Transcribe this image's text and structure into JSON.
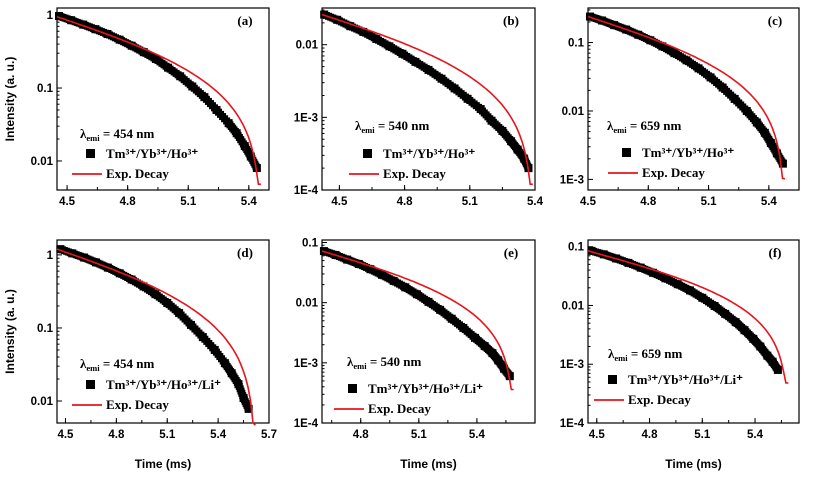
{
  "figure": {
    "y_axis_label": "Intensity (a. u.)",
    "x_axis_label": "Time (ms)",
    "colors": {
      "data": "#000000",
      "fit": "#e8141b"
    }
  },
  "chart_data": [
    {
      "type": "scatter",
      "id": "a",
      "letter": "(a)",
      "wavelength_label": "λ",
      "wavelength_sub": "emi",
      "wavelength_value": "= 454 nm",
      "xlim": [
        4.45,
        5.5
      ],
      "ylim": [
        0.004,
        1.25
      ],
      "xticks": [
        4.5,
        4.8,
        5.1,
        5.4
      ],
      "xtick_labels": [
        "4.5",
        "4.8",
        "5.1",
        "5.4"
      ],
      "yticks": [
        0.01,
        0.1,
        1
      ],
      "ytick_labels": [
        "0.01",
        "0.1",
        "1"
      ],
      "series": [
        {
          "name": "Tm³⁺/Yb³⁺/Ho³⁺",
          "kind": "data",
          "marker": "square",
          "x": [
            4.46,
            4.52,
            4.58,
            4.64,
            4.7,
            4.76,
            4.82,
            4.88,
            4.94,
            5.0,
            5.06,
            5.12,
            5.18,
            5.24,
            5.3,
            5.34,
            5.38,
            5.41,
            5.44
          ],
          "y": [
            0.97,
            0.85,
            0.74,
            0.64,
            0.55,
            0.46,
            0.38,
            0.31,
            0.25,
            0.19,
            0.145,
            0.105,
            0.075,
            0.05,
            0.033,
            0.024,
            0.016,
            0.0115,
            0.008
          ]
        },
        {
          "name": "Exp. Decay",
          "kind": "fit",
          "T": 5.46,
          "A": 0.95,
          "p": 1.4
        }
      ],
      "legend": {
        "data_label": "Tm³⁺/Yb³⁺/Ho³⁺",
        "fit_label": "Exp. Decay"
      },
      "ylabel": "Intensity (a. u.)",
      "xlabel": ""
    },
    {
      "type": "scatter",
      "id": "b",
      "letter": "(b)",
      "wavelength_label": "λ",
      "wavelength_sub": "emi",
      "wavelength_value": "= 540 nm",
      "xlim": [
        4.42,
        5.4
      ],
      "ylim": [
        0.0001,
        0.032
      ],
      "xticks": [
        4.5,
        4.8,
        5.1,
        5.4
      ],
      "xtick_labels": [
        "4.5",
        "4.8",
        "5.1",
        "5.4"
      ],
      "yticks": [
        0.0001,
        0.001,
        0.01
      ],
      "ytick_labels": [
        "1E-4",
        "1E-3",
        "0.01"
      ],
      "series": [
        {
          "name": "Tm³⁺/Yb³⁺/Ho³⁺",
          "kind": "data",
          "marker": "square",
          "x": [
            4.43,
            4.49,
            4.55,
            4.61,
            4.67,
            4.73,
            4.79,
            4.85,
            4.91,
            4.97,
            5.03,
            5.09,
            5.15,
            5.2,
            5.25,
            5.29,
            5.32,
            5.35,
            5.37
          ],
          "y": [
            0.026,
            0.022,
            0.018,
            0.015,
            0.012,
            0.0095,
            0.0075,
            0.0058,
            0.0045,
            0.0034,
            0.0025,
            0.0018,
            0.0013,
            0.0009,
            0.00065,
            0.00047,
            0.00036,
            0.00027,
            0.0002
          ]
        },
        {
          "name": "Exp. Decay",
          "kind": "fit",
          "T": 5.39,
          "A": 0.026,
          "p": 1.35
        }
      ],
      "legend": {
        "data_label": "Tm³⁺/Yb³⁺/Ho³⁺",
        "fit_label": "Exp. Decay"
      },
      "ylabel": "",
      "xlabel": ""
    },
    {
      "type": "scatter",
      "id": "c",
      "letter": "(c)",
      "wavelength_label": "λ",
      "wavelength_sub": "emi",
      "wavelength_value": "= 659 nm",
      "xlim": [
        4.5,
        5.55
      ],
      "ylim": [
        0.0007,
        0.32
      ],
      "xticks": [
        4.5,
        4.8,
        5.1,
        5.4
      ],
      "xtick_labels": [
        "4.5",
        "4.8",
        "5.1",
        "5.4"
      ],
      "yticks": [
        0.001,
        0.01,
        0.1
      ],
      "ytick_labels": [
        "1E-3",
        "0.01",
        "0.1"
      ],
      "series": [
        {
          "name": "Tm³⁺/Yb³⁺/Ho³⁺",
          "kind": "data",
          "marker": "square",
          "x": [
            4.51,
            4.57,
            4.63,
            4.69,
            4.75,
            4.81,
            4.87,
            4.93,
            4.99,
            5.05,
            5.11,
            5.17,
            5.23,
            5.29,
            5.34,
            5.38,
            5.41,
            5.44,
            5.47
          ],
          "y": [
            0.24,
            0.21,
            0.18,
            0.155,
            0.13,
            0.108,
            0.088,
            0.07,
            0.055,
            0.042,
            0.031,
            0.022,
            0.015,
            0.01,
            0.0068,
            0.0048,
            0.0034,
            0.0024,
            0.0017
          ]
        },
        {
          "name": "Exp. Decay",
          "kind": "fit",
          "T": 5.48,
          "A": 0.24,
          "p": 1.4
        }
      ],
      "legend": {
        "data_label": "Tm³⁺/Yb³⁺/Ho³⁺",
        "fit_label": "Exp. Decay"
      },
      "ylabel": "",
      "xlabel": ""
    },
    {
      "type": "scatter",
      "id": "d",
      "letter": "(d)",
      "wavelength_label": "λ",
      "wavelength_sub": "emi",
      "wavelength_value": "= 454 nm",
      "xlim": [
        4.45,
        5.7
      ],
      "ylim": [
        0.005,
        1.6
      ],
      "xticks": [
        4.5,
        4.8,
        5.1,
        5.4,
        5.7
      ],
      "xtick_labels": [
        "4.5",
        "4.8",
        "5.1",
        "5.4",
        "5.7"
      ],
      "yticks": [
        0.01,
        0.1,
        1
      ],
      "ytick_labels": [
        "0.01",
        "0.1",
        "1"
      ],
      "series": [
        {
          "name": "Tm³⁺/Yb³⁺/Ho³⁺/Li⁺",
          "kind": "data",
          "marker": "square",
          "x": [
            4.47,
            4.54,
            4.61,
            4.68,
            4.75,
            4.82,
            4.89,
            4.96,
            5.03,
            5.1,
            5.17,
            5.24,
            5.31,
            5.38,
            5.44,
            5.48,
            5.52,
            5.55,
            5.58
          ],
          "y": [
            1.2,
            1.05,
            0.92,
            0.79,
            0.67,
            0.56,
            0.46,
            0.37,
            0.29,
            0.22,
            0.16,
            0.11,
            0.075,
            0.05,
            0.033,
            0.024,
            0.017,
            0.011,
            0.0078
          ]
        },
        {
          "name": "Exp. Decay",
          "kind": "fit",
          "T": 5.62,
          "A": 1.2,
          "p": 1.35
        }
      ],
      "legend": {
        "data_label": "Tm³⁺/Yb³⁺/Ho³⁺/Li⁺",
        "fit_label": "Exp. Decay"
      },
      "ylabel": "Intensity (a. u.)",
      "xlabel": "Time (ms)"
    },
    {
      "type": "scatter",
      "id": "e",
      "letter": "(e)",
      "wavelength_label": "λ",
      "wavelength_sub": "emi",
      "wavelength_value": "= 540 nm",
      "xlim": [
        4.6,
        5.7
      ],
      "ylim": [
        0.0001,
        0.11
      ],
      "xticks": [
        4.8,
        5.1,
        5.4
      ],
      "xtick_labels": [
        "4.8",
        "5.1",
        "5.4"
      ],
      "yticks": [
        0.0001,
        0.001,
        0.01,
        0.1
      ],
      "ytick_labels": [
        "1E-4",
        "1E-3",
        "0.01",
        "0.1"
      ],
      "series": [
        {
          "name": "Tm³⁺/Yb³⁺/Ho³⁺/Li⁺",
          "kind": "data",
          "marker": "square",
          "x": [
            4.61,
            4.67,
            4.73,
            4.79,
            4.85,
            4.91,
            4.97,
            5.03,
            5.09,
            5.15,
            5.21,
            5.27,
            5.33,
            5.39,
            5.44,
            5.48,
            5.51,
            5.54,
            5.57
          ],
          "y": [
            0.072,
            0.062,
            0.052,
            0.044,
            0.036,
            0.029,
            0.023,
            0.018,
            0.0138,
            0.0103,
            0.0076,
            0.0054,
            0.0038,
            0.0026,
            0.0019,
            0.00145,
            0.0011,
            0.0008,
            0.0006
          ]
        },
        {
          "name": "Exp. Decay",
          "kind": "fit",
          "T": 5.59,
          "A": 0.072,
          "p": 1.35
        }
      ],
      "legend": {
        "data_label": "Tm³⁺/Yb³⁺/Ho³⁺/Li⁺",
        "fit_label": "Exp. Decay"
      },
      "ylabel": "",
      "xlabel": "Time (ms)"
    },
    {
      "type": "scatter",
      "id": "f",
      "letter": "(f)",
      "wavelength_label": "λ",
      "wavelength_sub": "emi",
      "wavelength_value": "= 659 nm",
      "xlim": [
        4.45,
        5.65
      ],
      "ylim": [
        0.0001,
        0.13
      ],
      "xticks": [
        4.5,
        4.8,
        5.1,
        5.4
      ],
      "xtick_labels": [
        "4.5",
        "4.8",
        "5.1",
        "5.4"
      ],
      "yticks": [
        0.0001,
        0.001,
        0.01,
        0.1
      ],
      "ytick_labels": [
        "1E-4",
        "1E-3",
        "0.01",
        "0.1"
      ],
      "series": [
        {
          "name": "Tm³⁺/Yb³⁺/Ho³⁺/Li⁺",
          "kind": "data",
          "marker": "square",
          "x": [
            4.47,
            4.54,
            4.61,
            4.68,
            4.75,
            4.82,
            4.89,
            4.96,
            5.03,
            5.1,
            5.17,
            5.23,
            5.29,
            5.34,
            5.39,
            5.43,
            5.47,
            5.5,
            5.53
          ],
          "y": [
            0.085,
            0.074,
            0.063,
            0.053,
            0.044,
            0.036,
            0.029,
            0.023,
            0.018,
            0.0135,
            0.0098,
            0.0072,
            0.0052,
            0.0038,
            0.0027,
            0.002,
            0.0014,
            0.0011,
            0.0008
          ]
        },
        {
          "name": "Exp. Decay",
          "kind": "fit",
          "T": 5.59,
          "A": 0.085,
          "p": 1.45
        }
      ],
      "legend": {
        "data_label": "Tm³⁺/Yb³⁺/Ho³⁺/Li⁺",
        "fit_label": "Exp. Decay"
      },
      "ylabel": "",
      "xlabel": "Time (ms)"
    }
  ]
}
